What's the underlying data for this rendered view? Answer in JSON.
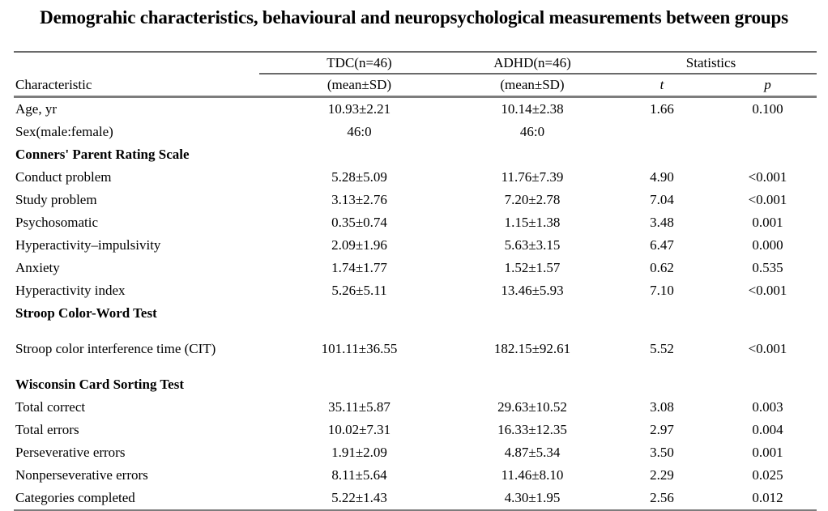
{
  "title": "Demograhic characteristics, behavioural and neuropsychological measurements between groups",
  "table": {
    "header": {
      "characteristic": "Characteristic",
      "group1": "TDC(n=46)",
      "group2": "ADHD(n=46)",
      "stats": "Statistics",
      "sub1": "(mean±SD)",
      "sub2": "(mean±SD)",
      "t": "t",
      "p": "p"
    },
    "rows": [
      {
        "type": "data",
        "label": "Age, yr",
        "tdc": "10.93±2.21",
        "adhd": "10.14±2.38",
        "t": "1.66",
        "p": "0.100"
      },
      {
        "type": "data",
        "label": "Sex(male:female)",
        "tdc": "46:0",
        "adhd": "46:0",
        "t": "",
        "p": ""
      },
      {
        "type": "section",
        "label": "Conners' Parent Rating Scale"
      },
      {
        "type": "data",
        "label": "Conduct problem",
        "tdc": "5.28±5.09",
        "adhd": "11.76±7.39",
        "t": "4.90",
        "p": "<0.001"
      },
      {
        "type": "data",
        "label": "Study problem",
        "tdc": "3.13±2.76",
        "adhd": "7.20±2.78",
        "t": "7.04",
        "p": "<0.001"
      },
      {
        "type": "data",
        "label": "Psychosomatic",
        "tdc": "0.35±0.74",
        "adhd": "1.15±1.38",
        "t": "3.48",
        "p": "0.001"
      },
      {
        "type": "data",
        "label": "Hyperactivity–impulsivity",
        "tdc": "2.09±1.96",
        "adhd": "5.63±3.15",
        "t": "6.47",
        "p": "0.000"
      },
      {
        "type": "data",
        "label": "Anxiety",
        "tdc": "1.74±1.77",
        "adhd": "1.52±1.57",
        "t": "0.62",
        "p": "0.535"
      },
      {
        "type": "data",
        "label": "Hyperactivity index",
        "tdc": "5.26±5.11",
        "adhd": "13.46±5.93",
        "t": "7.10",
        "p": "<0.001"
      },
      {
        "type": "section",
        "label": "Stroop Color-Word Test"
      },
      {
        "type": "data",
        "label": "Stroop color interference time (CIT)",
        "tdc": "101.11±36.55",
        "adhd": "182.15±92.61",
        "t": "5.52",
        "p": "<0.001",
        "gap_above": true
      },
      {
        "type": "section",
        "label": "Wisconsin Card Sorting Test",
        "gap_above": true
      },
      {
        "type": "data",
        "label": "Total correct",
        "tdc": "35.11±5.87",
        "adhd": "29.63±10.52",
        "t": "3.08",
        "p": "0.003"
      },
      {
        "type": "data",
        "label": "Total errors",
        "tdc": "10.02±7.31",
        "adhd": "16.33±12.35",
        "t": "2.97",
        "p": "0.004"
      },
      {
        "type": "data",
        "label": "Perseverative errors",
        "tdc": "1.91±2.09",
        "adhd": "4.87±5.34",
        "t": "3.50",
        "p": "0.001"
      },
      {
        "type": "data",
        "label": "Nonperseverative errors",
        "tdc": "8.11±5.64",
        "adhd": "11.46±8.10",
        "t": "2.29",
        "p": "0.025"
      },
      {
        "type": "data",
        "label": "Categories completed",
        "tdc": "5.22±1.43",
        "adhd": "4.30±1.95",
        "t": "2.56",
        "p": "0.012"
      }
    ]
  }
}
